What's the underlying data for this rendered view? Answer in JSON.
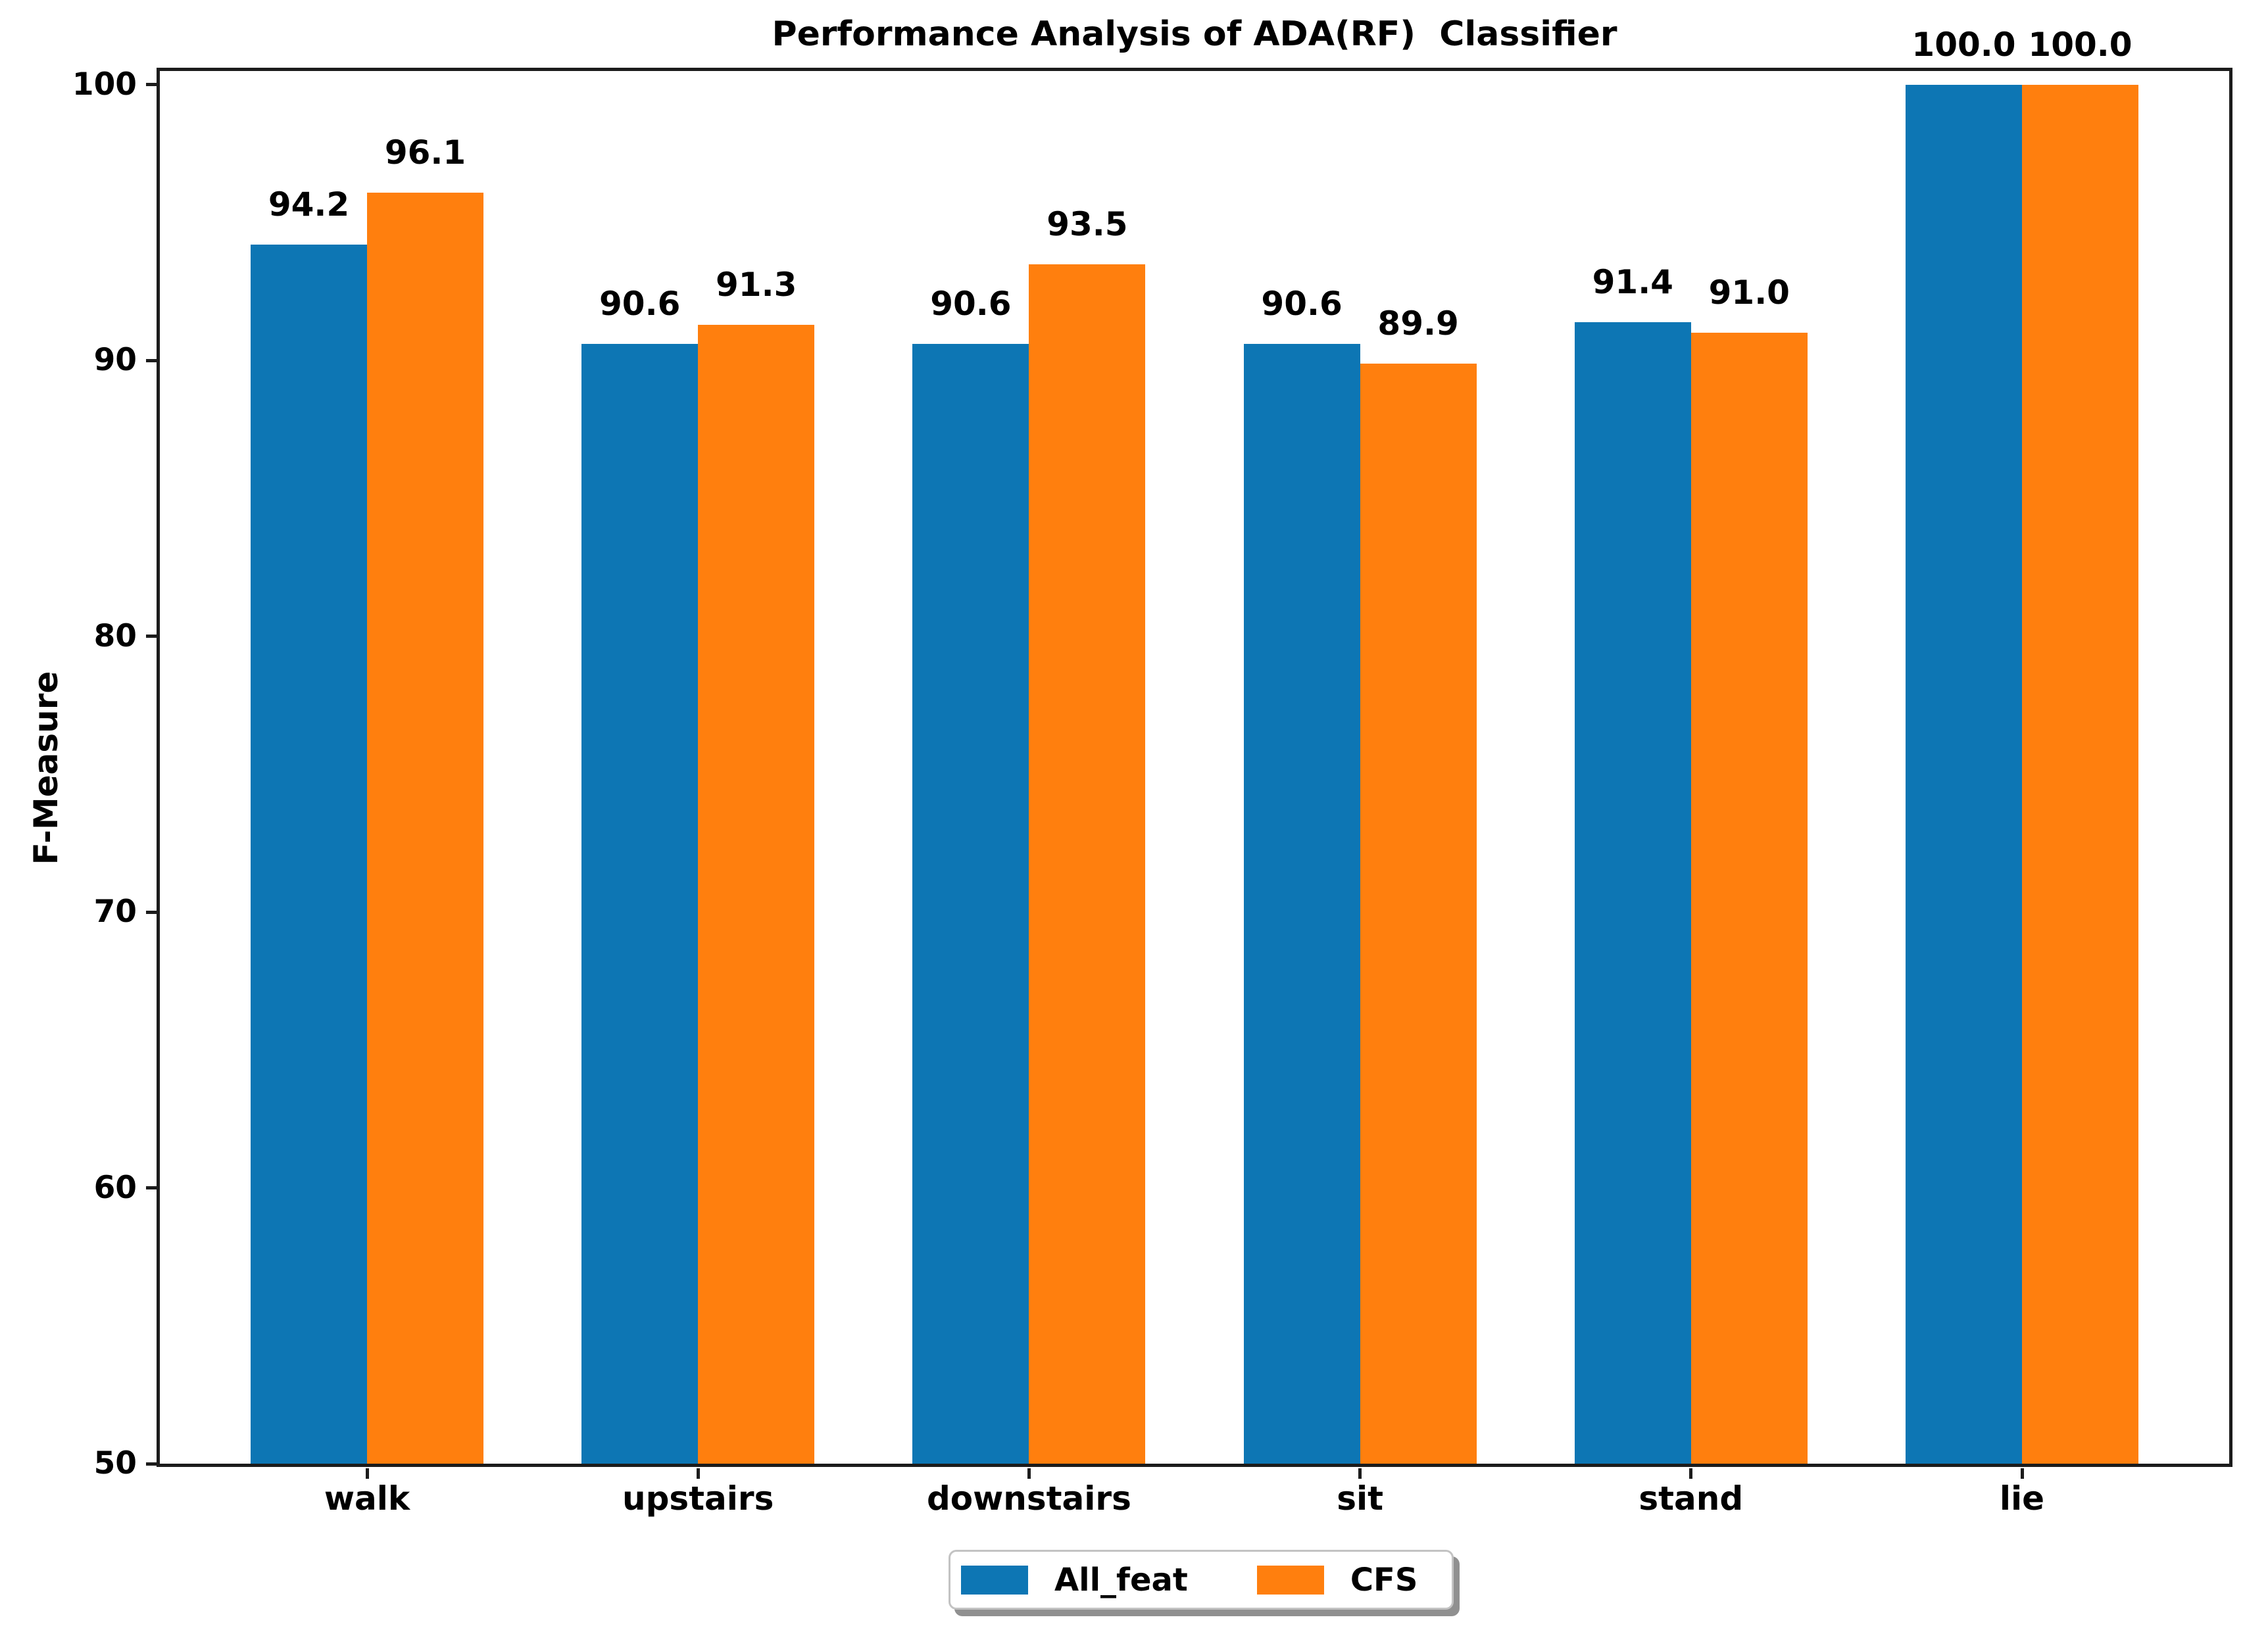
{
  "chart_data": {
    "type": "bar",
    "title": "Performance Analysis of ADA(RF)  Classifier",
    "ylabel": "F-Measure",
    "xlabel": "",
    "categories": [
      "walk",
      "upstairs",
      "downstairs",
      "sit",
      "stand",
      "lie"
    ],
    "series": [
      {
        "name": "All_feat",
        "color": "#0d76b4",
        "values": [
          94.2,
          90.6,
          90.6,
          90.6,
          91.4,
          100.0
        ]
      },
      {
        "name": "CFS",
        "color": "#ff7f0e",
        "values": [
          96.1,
          91.3,
          93.5,
          89.9,
          91.0,
          100.0
        ]
      }
    ],
    "bar_value_labels": [
      "94.2",
      "96.1",
      "90.6",
      "91.3",
      "90.6",
      "93.5",
      "90.6",
      "89.9",
      "91.4",
      "91.0",
      "100.0",
      "100.0"
    ],
    "yticks": [
      50,
      60,
      70,
      80,
      90,
      100
    ],
    "ylim": [
      50,
      100.5
    ],
    "grid": false,
    "legend_position": "lower center outside"
  },
  "legend": {
    "items": [
      {
        "label": "All_feat",
        "color": "#0d76b4"
      },
      {
        "label": "CFS",
        "color": "#ff7f0e"
      }
    ]
  },
  "colors": {
    "axis": "#1c1c1c",
    "text": "#000000",
    "background": "#ffffff"
  }
}
